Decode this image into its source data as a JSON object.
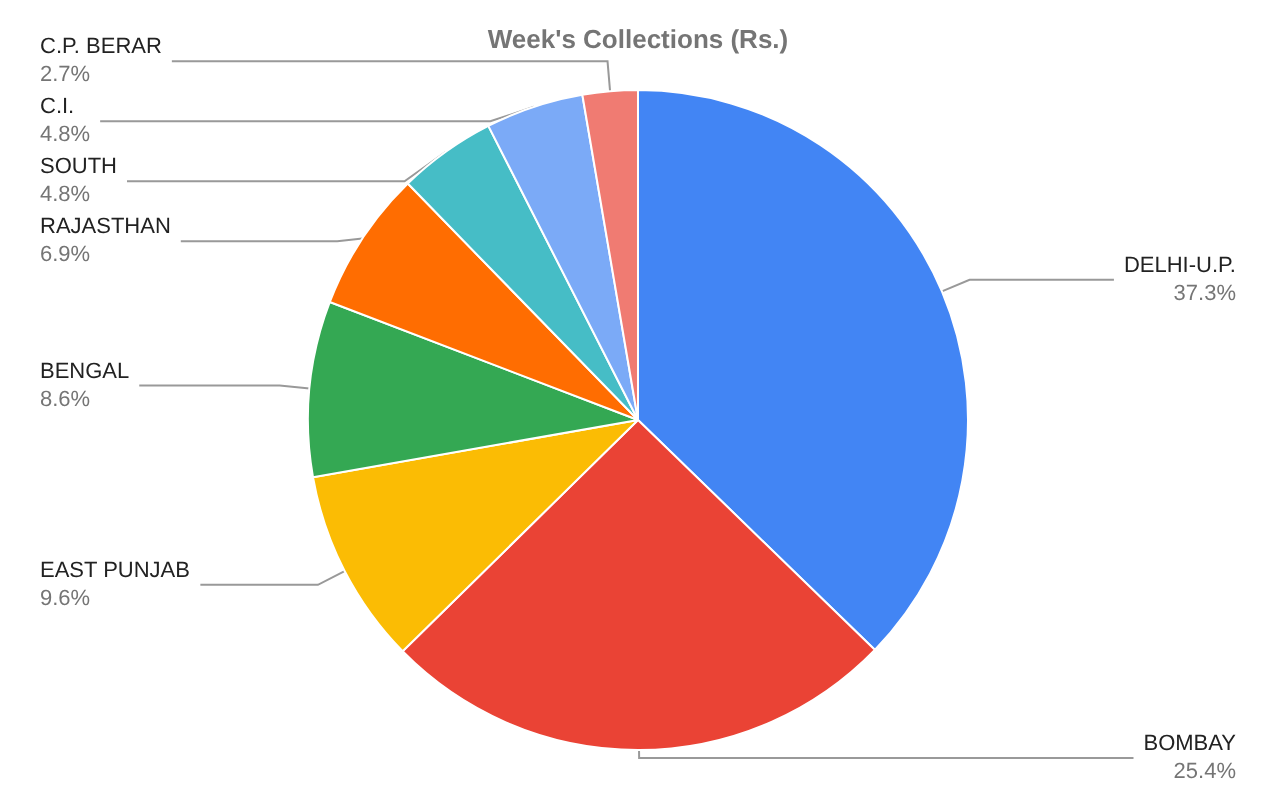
{
  "chart_data": {
    "type": "pie",
    "title": "Week's Collections (Rs.)",
    "categories": [
      "DELHI-U.P.",
      "BOMBAY",
      "EAST PUNJAB",
      "BENGAL",
      "RAJASTHAN",
      "SOUTH",
      "C.I.",
      "C.P. BERAR"
    ],
    "values": [
      37.3,
      25.4,
      9.6,
      8.6,
      6.9,
      4.8,
      4.8,
      2.7
    ],
    "value_labels": [
      "37.3%",
      "25.4%",
      "9.6%",
      "8.6%",
      "6.9%",
      "4.8%",
      "4.8%",
      "2.7%"
    ],
    "colors": [
      "#4285f4",
      "#ea4335",
      "#fbbc04",
      "#34a853",
      "#ff6d01",
      "#46bdc6",
      "#7baaf7",
      "#f07b72"
    ],
    "legend": false
  }
}
